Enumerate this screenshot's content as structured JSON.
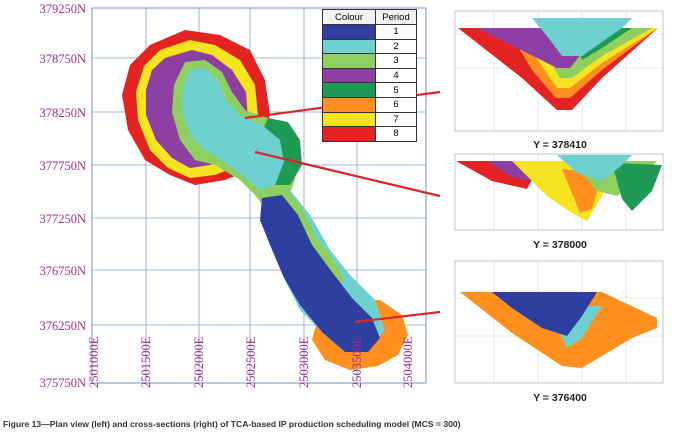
{
  "northing_labels": [
    "379250N",
    "378750N",
    "378250N",
    "377750N",
    "377250N",
    "376750N",
    "376250N",
    "375750N"
  ],
  "easting_labels": [
    "2501000E",
    "2501500E",
    "2502000E",
    "2502500E",
    "2503000E",
    "2503500E",
    "2504000E"
  ],
  "legend": {
    "col_colour": "Colour",
    "col_period": "Period",
    "rows": [
      {
        "period": "1",
        "color": "#2f3fa0"
      },
      {
        "period": "2",
        "color": "#6fd0d0"
      },
      {
        "period": "3",
        "color": "#8fcf5f"
      },
      {
        "period": "4",
        "color": "#8e3fa4"
      },
      {
        "period": "5",
        "color": "#1e9a55"
      },
      {
        "period": "6",
        "color": "#ff8f1f"
      },
      {
        "period": "7",
        "color": "#f5e420"
      },
      {
        "period": "8",
        "color": "#e32222"
      }
    ]
  },
  "sections": [
    {
      "label": "Y = 378410"
    },
    {
      "label": "Y = 378000"
    },
    {
      "label": "Y = 376400"
    }
  ],
  "colors": {
    "grid": "#7a8fc4",
    "arrow": "#d9262a",
    "axis_label": "#9b2f8f"
  },
  "caption": "Figure 13—Plan view (left) and cross-sections (right) of TCA-based IP production scheduling model (MCS = 300)"
}
